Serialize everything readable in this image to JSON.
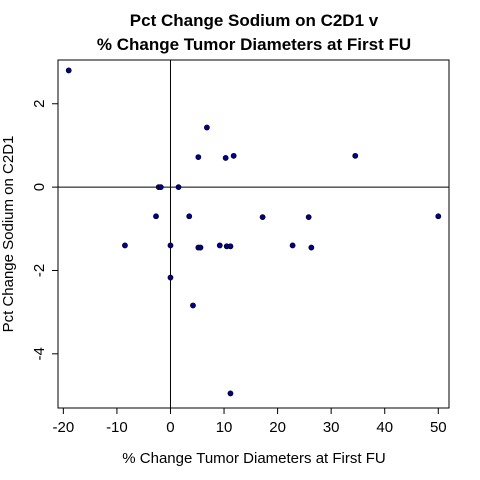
{
  "chart_data": {
    "type": "scatter",
    "title_lines": [
      "Pct Change Sodium on C2D1 v",
      "% Change Tumor Diameters at First FU"
    ],
    "xlabel": "% Change Tumor Diameters at First FU",
    "ylabel": "Pct Change Sodium on C2D1",
    "xlim": [
      -21,
      52
    ],
    "ylim": [
      -5.3,
      3.05
    ],
    "x_ticks": [
      -20,
      -10,
      0,
      10,
      20,
      30,
      40,
      50
    ],
    "y_ticks": [
      -4,
      -2,
      0,
      2
    ],
    "reference_lines": {
      "x": 0,
      "y": 0
    },
    "grid": false,
    "point_color": "#00008B",
    "points": [
      {
        "x": -19.0,
        "y": 2.8
      },
      {
        "x": -8.5,
        "y": -1.4
      },
      {
        "x": -2.7,
        "y": -0.7
      },
      {
        "x": -2.2,
        "y": 0.0
      },
      {
        "x": -1.8,
        "y": 0.0
      },
      {
        "x": 0.0,
        "y": -1.4
      },
      {
        "x": 0.0,
        "y": -2.17
      },
      {
        "x": 1.5,
        "y": 0.0
      },
      {
        "x": 3.5,
        "y": -0.7
      },
      {
        "x": 4.2,
        "y": -2.84
      },
      {
        "x": 5.2,
        "y": 0.72
      },
      {
        "x": 5.2,
        "y": -1.45
      },
      {
        "x": 5.6,
        "y": -1.45
      },
      {
        "x": 6.8,
        "y": 1.43
      },
      {
        "x": 9.2,
        "y": -1.4
      },
      {
        "x": 10.3,
        "y": 0.7
      },
      {
        "x": 10.5,
        "y": -1.42
      },
      {
        "x": 11.2,
        "y": -1.42
      },
      {
        "x": 11.2,
        "y": -4.95
      },
      {
        "x": 11.8,
        "y": 0.75
      },
      {
        "x": 17.2,
        "y": -0.72
      },
      {
        "x": 22.8,
        "y": -1.4
      },
      {
        "x": 25.8,
        "y": -0.72
      },
      {
        "x": 26.3,
        "y": -1.45
      },
      {
        "x": 34.5,
        "y": 0.75
      },
      {
        "x": 50.0,
        "y": -0.7
      }
    ]
  }
}
